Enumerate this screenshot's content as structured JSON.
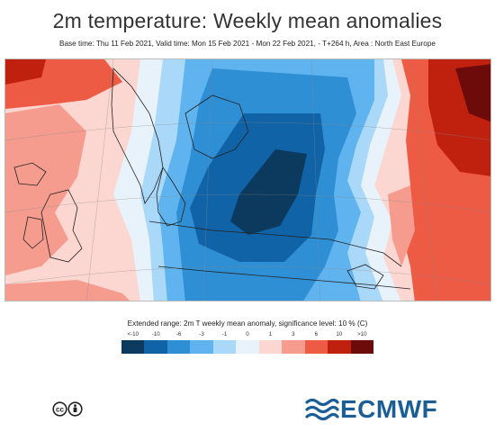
{
  "header": {
    "title": "2m temperature: Weekly mean anomalies",
    "subtitle": "Base time: Thu 11 Feb 2021, Valid time: Mon 15 Feb 2021 - Mon 22 Feb 2021, - T+264 h, Area : North East Europe"
  },
  "legend": {
    "title": "Extended range: 2m T weekly mean anomaly, significance level: 10 % (C)",
    "ticks": [
      "<-10",
      "-10",
      "-6",
      "-3",
      "-1",
      "0",
      "1",
      "3",
      "6",
      "10",
      ">10"
    ],
    "colors": [
      "#0b3a5e",
      "#1063a6",
      "#2f8fd4",
      "#5fb3ee",
      "#a9d8f8",
      "#e7f2fb",
      "#fcd6d0",
      "#f59c8f",
      "#ee5b44",
      "#c0210f",
      "#6d0b0a"
    ]
  },
  "footer": {
    "license_icon": "creative-commons-by-icon",
    "logo_text": "ECMWF"
  }
}
